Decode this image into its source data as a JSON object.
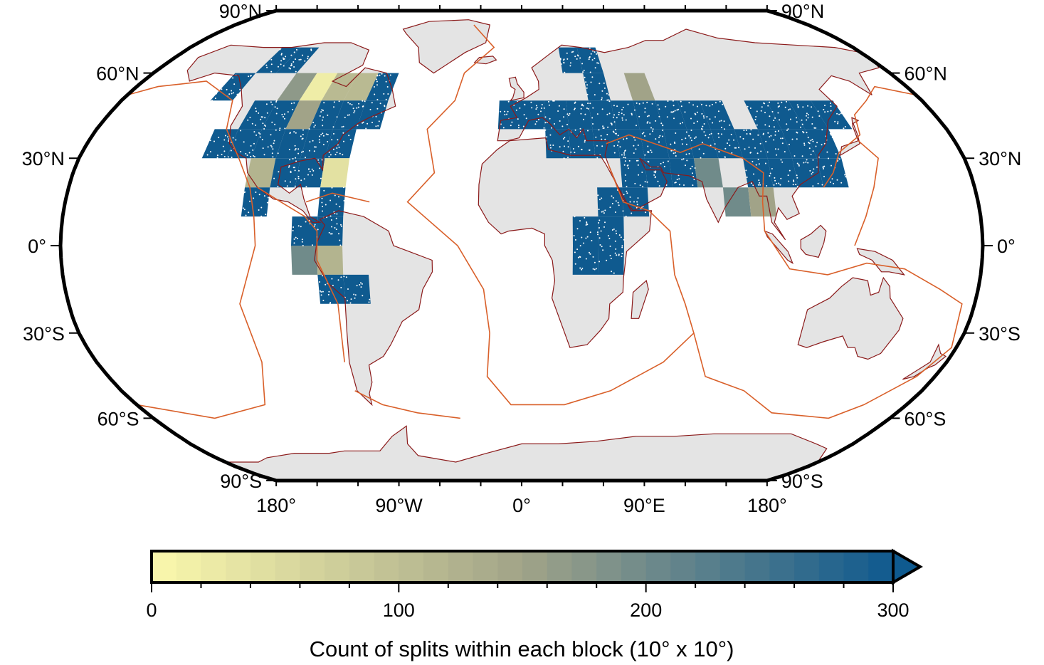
{
  "map": {
    "projection": "Robinson",
    "central_meridian": 0,
    "grid_block_size_deg": 10,
    "lat_labels": [
      "90°N",
      "60°N",
      "30°N",
      "0°",
      "30°S",
      "60°S",
      "90°S"
    ],
    "lat_values": [
      90,
      60,
      30,
      0,
      -30,
      -60,
      -90
    ],
    "lon_labels": [
      "180°",
      "90°W",
      "0°",
      "90°E",
      "180°"
    ],
    "lon_values": [
      -180,
      -90,
      0,
      90,
      180
    ],
    "colors": {
      "land": "#e4e4e4",
      "ocean": "#ffffff",
      "coastline": "#8b1a1a",
      "plate_boundaries": "#d9602a",
      "frame": "#000000",
      "split_points": "#ffffff"
    }
  },
  "colorbar": {
    "title": "Count of splits within each block (10° x 10°)",
    "tick_labels": [
      "0",
      "100",
      "200",
      "300"
    ],
    "tick_values": [
      0,
      100,
      200,
      300
    ],
    "min": 0,
    "max": 300,
    "step": 10,
    "extend": "max",
    "color_low": "#fbf8ac",
    "color_mid": "#a1a388",
    "color_high": "#0f5a8f"
  },
  "chart_data": {
    "type": "heatmap",
    "description_units": "count of splits per 10°x10° block, keyed by block south-west corner [lon, lat]",
    "blocks": [
      {
        "lon": -130,
        "lat": 60,
        "count": 300
      },
      {
        "lon": -120,
        "lat": 60,
        "count": 300
      },
      {
        "lon": -140,
        "lat": 50,
        "count": 300
      },
      {
        "lon": -110,
        "lat": 50,
        "count": 170
      },
      {
        "lon": -100,
        "lat": 50,
        "count": 20
      },
      {
        "lon": -90,
        "lat": 50,
        "count": 110
      },
      {
        "lon": -80,
        "lat": 50,
        "count": 110
      },
      {
        "lon": -70,
        "lat": 50,
        "count": 300
      },
      {
        "lon": -120,
        "lat": 40,
        "count": 300
      },
      {
        "lon": -110,
        "lat": 40,
        "count": 300
      },
      {
        "lon": -100,
        "lat": 40,
        "count": 150
      },
      {
        "lon": -90,
        "lat": 40,
        "count": 300
      },
      {
        "lon": -80,
        "lat": 40,
        "count": 300
      },
      {
        "lon": -70,
        "lat": 40,
        "count": 300
      },
      {
        "lon": -130,
        "lat": 30,
        "count": 300
      },
      {
        "lon": -120,
        "lat": 30,
        "count": 300
      },
      {
        "lon": -110,
        "lat": 30,
        "count": 300
      },
      {
        "lon": -100,
        "lat": 30,
        "count": 300
      },
      {
        "lon": -90,
        "lat": 30,
        "count": 300
      },
      {
        "lon": -80,
        "lat": 30,
        "count": 300
      },
      {
        "lon": -110,
        "lat": 20,
        "count": 120
      },
      {
        "lon": -100,
        "lat": 20,
        "count": 300
      },
      {
        "lon": -90,
        "lat": 20,
        "count": 300
      },
      {
        "lon": -80,
        "lat": 20,
        "count": 40
      },
      {
        "lon": -110,
        "lat": 10,
        "count": 300
      },
      {
        "lon": -80,
        "lat": 10,
        "count": 300
      },
      {
        "lon": -90,
        "lat": 0,
        "count": 300
      },
      {
        "lon": -80,
        "lat": 0,
        "count": 300
      },
      {
        "lon": -90,
        "lat": -10,
        "count": 200
      },
      {
        "lon": -80,
        "lat": -10,
        "count": 120
      },
      {
        "lon": -80,
        "lat": -20,
        "count": 300
      },
      {
        "lon": -70,
        "lat": -20,
        "count": 300
      },
      {
        "lon": 20,
        "lat": 60,
        "count": 300
      },
      {
        "lon": 30,
        "lat": 60,
        "count": 300
      },
      {
        "lon": 30,
        "lat": 50,
        "count": 300
      },
      {
        "lon": 50,
        "lat": 50,
        "count": 150
      },
      {
        "lon": -10,
        "lat": 40,
        "count": 300
      },
      {
        "lon": 0,
        "lat": 40,
        "count": 300
      },
      {
        "lon": 10,
        "lat": 40,
        "count": 300
      },
      {
        "lon": 20,
        "lat": 40,
        "count": 300
      },
      {
        "lon": 30,
        "lat": 40,
        "count": 300
      },
      {
        "lon": 40,
        "lat": 40,
        "count": 300
      },
      {
        "lon": 50,
        "lat": 40,
        "count": 300
      },
      {
        "lon": 60,
        "lat": 40,
        "count": 300
      },
      {
        "lon": 70,
        "lat": 40,
        "count": 300
      },
      {
        "lon": 80,
        "lat": 40,
        "count": 300
      },
      {
        "lon": 10,
        "lat": 30,
        "count": 300
      },
      {
        "lon": 20,
        "lat": 30,
        "count": 300
      },
      {
        "lon": 30,
        "lat": 30,
        "count": 300
      },
      {
        "lon": 40,
        "lat": 30,
        "count": 300
      },
      {
        "lon": 50,
        "lat": 30,
        "count": 300
      },
      {
        "lon": 60,
        "lat": 30,
        "count": 300
      },
      {
        "lon": 70,
        "lat": 30,
        "count": 300
      },
      {
        "lon": 80,
        "lat": 30,
        "count": 300
      },
      {
        "lon": 90,
        "lat": 30,
        "count": 300
      },
      {
        "lon": 100,
        "lat": 30,
        "count": 300
      },
      {
        "lon": 110,
        "lat": 30,
        "count": 300
      },
      {
        "lon": 120,
        "lat": 30,
        "count": 300
      },
      {
        "lon": 100,
        "lat": 40,
        "count": 300
      },
      {
        "lon": 110,
        "lat": 40,
        "count": 300
      },
      {
        "lon": 120,
        "lat": 40,
        "count": 300
      },
      {
        "lon": 130,
        "lat": 40,
        "count": 300
      },
      {
        "lon": 40,
        "lat": 20,
        "count": 300
      },
      {
        "lon": 50,
        "lat": 20,
        "count": 300
      },
      {
        "lon": 60,
        "lat": 20,
        "count": 300
      },
      {
        "lon": 70,
        "lat": 20,
        "count": 200
      },
      {
        "lon": 90,
        "lat": 20,
        "count": 300
      },
      {
        "lon": 100,
        "lat": 20,
        "count": 300
      },
      {
        "lon": 110,
        "lat": 20,
        "count": 300
      },
      {
        "lon": 120,
        "lat": 20,
        "count": 300
      },
      {
        "lon": 30,
        "lat": 10,
        "count": 300
      },
      {
        "lon": 40,
        "lat": 10,
        "count": 300
      },
      {
        "lon": 20,
        "lat": 0,
        "count": 300
      },
      {
        "lon": 30,
        "lat": 0,
        "count": 300
      },
      {
        "lon": 20,
        "lat": -10,
        "count": 300
      },
      {
        "lon": 30,
        "lat": -10,
        "count": 300
      },
      {
        "lon": 80,
        "lat": 10,
        "count": 200
      },
      {
        "lon": 90,
        "lat": 10,
        "count": 150
      }
    ]
  }
}
